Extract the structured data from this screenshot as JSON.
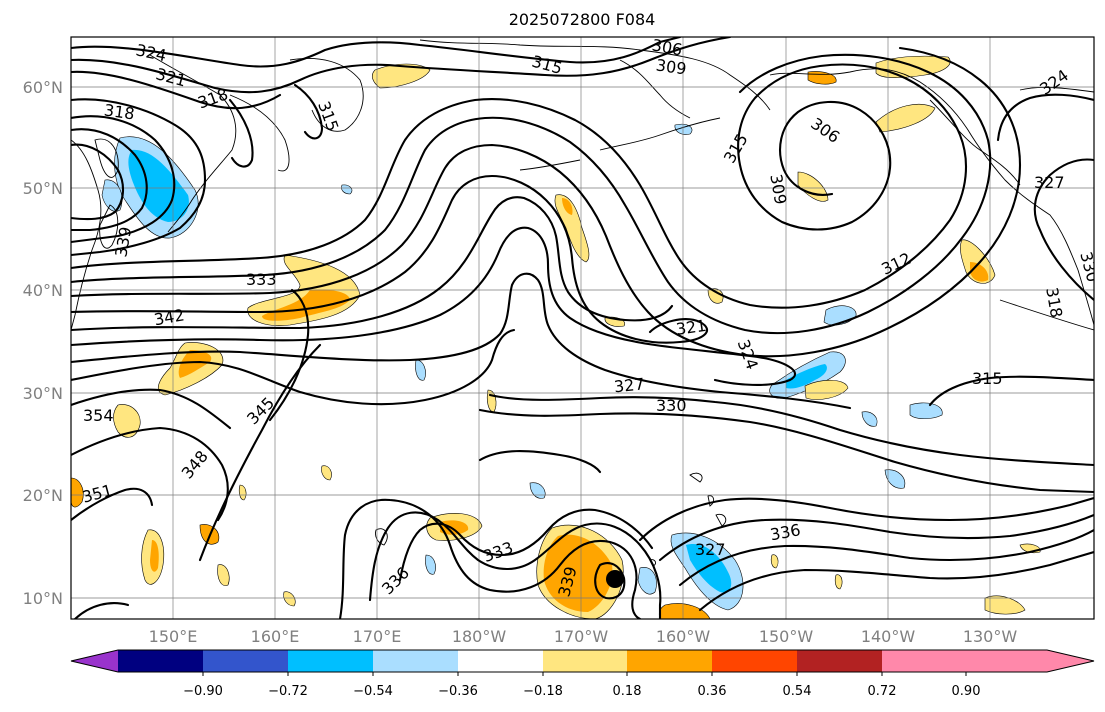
{
  "title": "2025072800 F084",
  "lat_labels": [
    "60°N",
    "50°N",
    "40°N",
    "30°N",
    "20°N",
    "10°N"
  ],
  "lon_labels": [
    "150°E",
    "160°E",
    "170°E",
    "180°W",
    "170°W",
    "160°W",
    "150°W",
    "140°W",
    "130°W"
  ],
  "colorbar": {
    "ticks": [
      "−0.90",
      "−0.72",
      "−0.54",
      "−0.36",
      "−0.18",
      "0.18",
      "0.36",
      "0.54",
      "0.72",
      "0.90"
    ],
    "colors": [
      "#9933cc",
      "#000080",
      "#3355cc",
      "#00bfff",
      "#aadeff",
      "#ffffff",
      "#ffe680",
      "#ffa500",
      "#ff4500",
      "#b22222",
      "#ff88aa"
    ]
  },
  "contour_labels": [
    "324",
    "321",
    "318",
    "318",
    "315",
    "306",
    "309",
    "315",
    "315",
    "306",
    "309",
    "324",
    "327",
    "339",
    "333",
    "342",
    "312",
    "330",
    "318",
    "321",
    "324",
    "327",
    "330",
    "315",
    "354",
    "345",
    "348",
    "351",
    "333",
    "336",
    "339",
    "327",
    "336"
  ],
  "colors": {
    "positive_light": "#ffe680",
    "positive_orange": "#ffa500",
    "negative_light": "#aadeff",
    "negative_blue": "#00bfff"
  }
}
